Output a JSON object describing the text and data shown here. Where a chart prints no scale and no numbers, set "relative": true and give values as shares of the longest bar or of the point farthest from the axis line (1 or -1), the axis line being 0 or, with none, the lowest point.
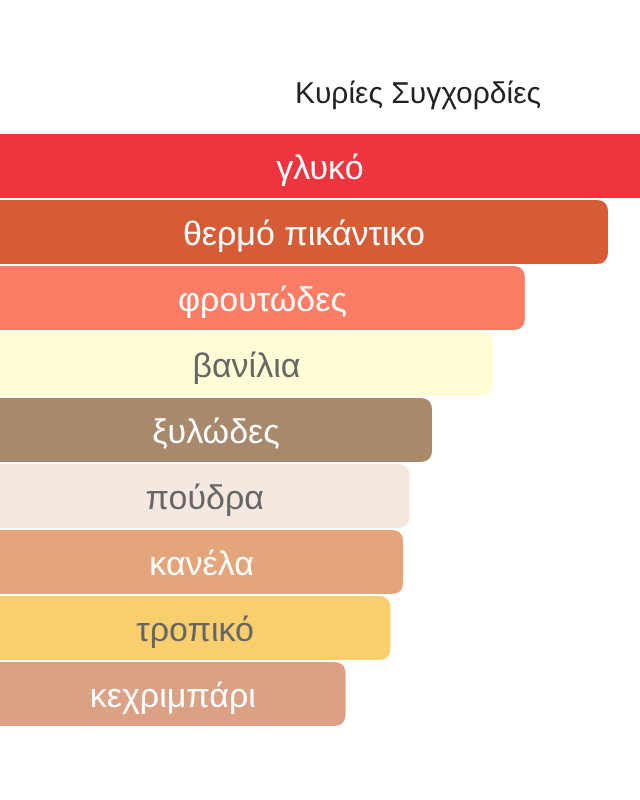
{
  "chart_data": {
    "type": "bar",
    "orientation": "horizontal",
    "relative": true,
    "title": "Κυρίες Συγχορδίες",
    "data_labels": false,
    "categories": [
      "γλυκό",
      "θερμό πικάντικο",
      "φρουτώδες",
      "βανίλια",
      "ξυλώδες",
      "πούδρα",
      "κανέλα",
      "τροπικό",
      "κεχριμπάρι"
    ],
    "values": [
      1,
      0.95,
      0.82,
      0.77,
      0.675,
      0.64,
      0.63,
      0.61,
      0.54
    ],
    "colors": [
      "#ee343e",
      "#d65c35",
      "#fc7d66",
      "#fefdd6",
      "#a8896c",
      "#f4e8e0",
      "#e4a57b",
      "#f8cf6c",
      "#dca084"
    ]
  }
}
